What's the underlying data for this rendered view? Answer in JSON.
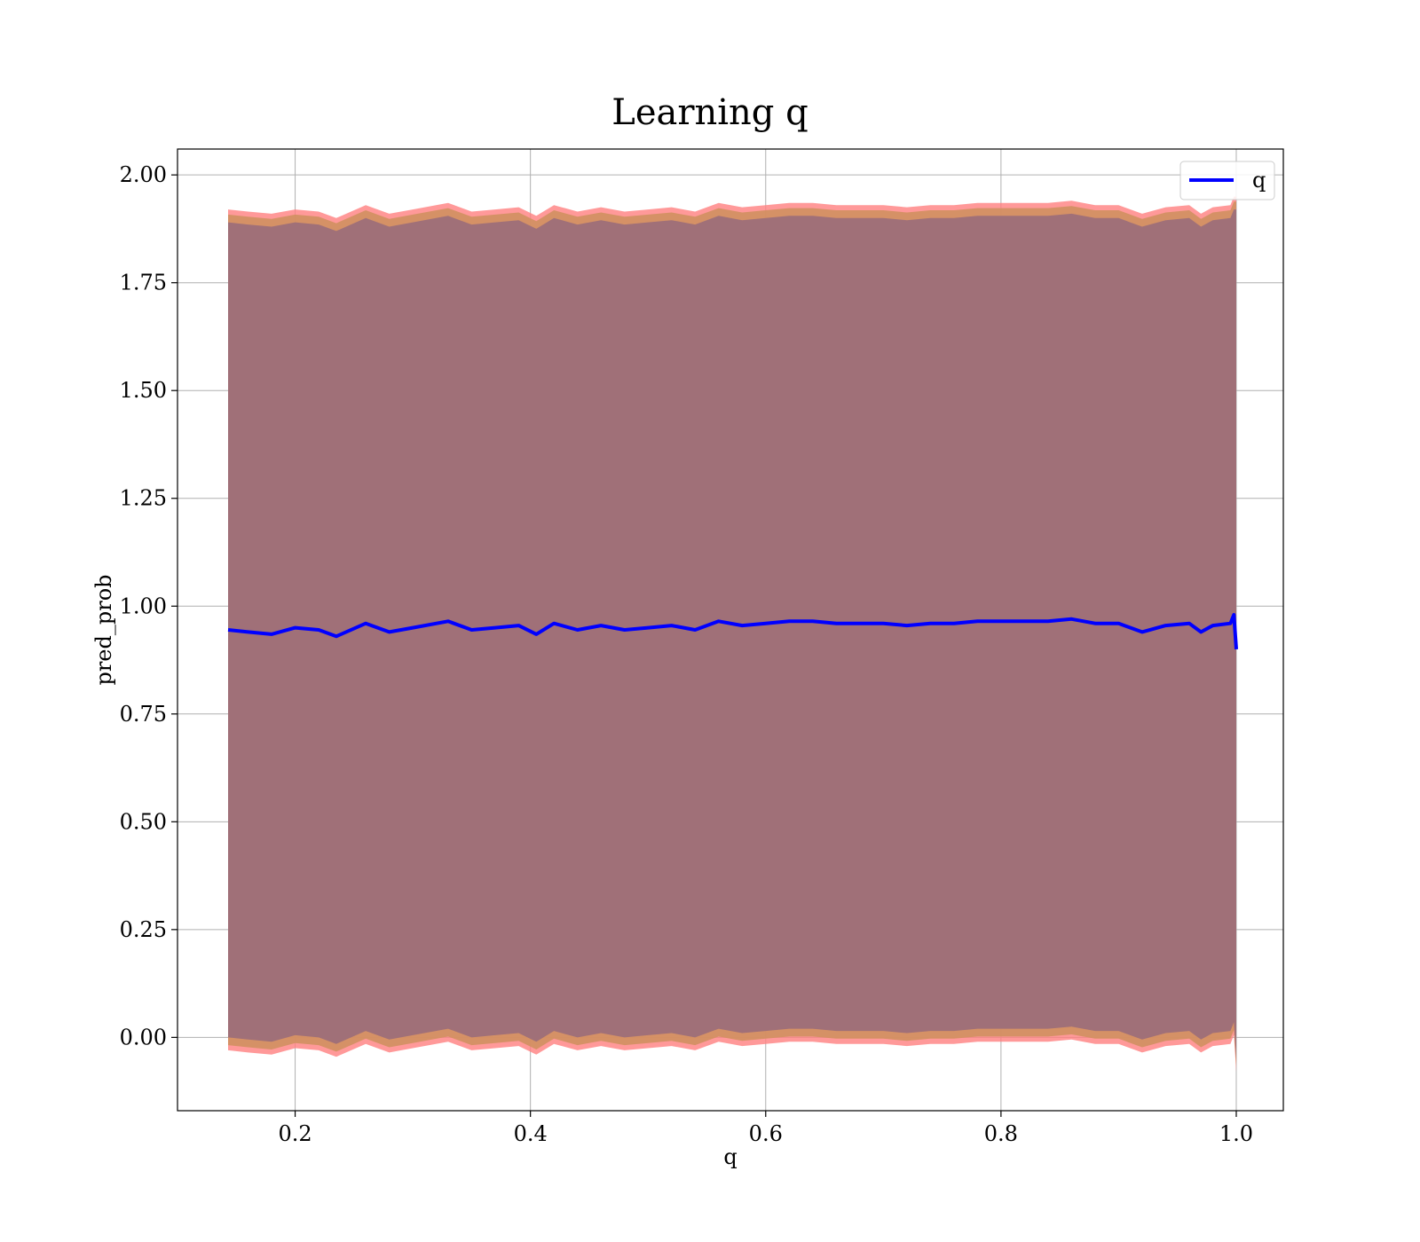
{
  "chart_data": {
    "type": "line",
    "title": "Learning q",
    "xlabel": "q",
    "ylabel": "pred_prob",
    "xlim": [
      0.1,
      1.04
    ],
    "ylim": [
      -0.17,
      2.06
    ],
    "xticks": [
      0.2,
      0.4,
      0.6,
      0.8,
      1.0
    ],
    "xtick_labels": [
      "0.2",
      "0.4",
      "0.6",
      "0.8",
      "1.0"
    ],
    "yticks": [
      0.0,
      0.25,
      0.5,
      0.75,
      1.0,
      1.25,
      1.5,
      1.75,
      2.0
    ],
    "ytick_labels": [
      "0.00",
      "0.25",
      "0.50",
      "0.75",
      "1.00",
      "1.25",
      "1.50",
      "1.75",
      "2.00"
    ],
    "grid": true,
    "legend": {
      "position": "top-right",
      "entries": [
        "q"
      ]
    },
    "colors": {
      "line": "#0000ff",
      "band_outer": "#ff7f7f",
      "band_middle": "#d09060",
      "band_inner": "#a07078",
      "grid": "#b0b0b0"
    },
    "series": [
      {
        "name": "q",
        "x": [
          0.143,
          0.16,
          0.18,
          0.2,
          0.22,
          0.235,
          0.26,
          0.28,
          0.3,
          0.33,
          0.35,
          0.37,
          0.39,
          0.405,
          0.42,
          0.44,
          0.46,
          0.48,
          0.5,
          0.52,
          0.54,
          0.56,
          0.58,
          0.6,
          0.62,
          0.64,
          0.66,
          0.68,
          0.7,
          0.72,
          0.74,
          0.76,
          0.78,
          0.8,
          0.82,
          0.84,
          0.86,
          0.88,
          0.9,
          0.92,
          0.94,
          0.96,
          0.97,
          0.98,
          0.995,
          0.998,
          1.0
        ],
        "y": [
          0.945,
          0.94,
          0.935,
          0.95,
          0.945,
          0.93,
          0.96,
          0.94,
          0.95,
          0.965,
          0.945,
          0.95,
          0.955,
          0.935,
          0.96,
          0.945,
          0.955,
          0.945,
          0.95,
          0.955,
          0.945,
          0.965,
          0.955,
          0.96,
          0.965,
          0.965,
          0.96,
          0.96,
          0.96,
          0.955,
          0.96,
          0.96,
          0.965,
          0.965,
          0.965,
          0.965,
          0.97,
          0.96,
          0.96,
          0.94,
          0.955,
          0.96,
          0.94,
          0.955,
          0.96,
          0.98,
          0.9
        ],
        "band_upper": [
          1.9,
          1.895,
          1.89,
          1.9,
          1.895,
          1.88,
          1.91,
          1.89,
          1.9,
          1.915,
          1.895,
          1.9,
          1.905,
          1.885,
          1.91,
          1.895,
          1.905,
          1.895,
          1.9,
          1.905,
          1.895,
          1.915,
          1.905,
          1.91,
          1.915,
          1.915,
          1.91,
          1.91,
          1.91,
          1.905,
          1.91,
          1.91,
          1.915,
          1.915,
          1.915,
          1.915,
          1.92,
          1.91,
          1.91,
          1.89,
          1.905,
          1.91,
          1.89,
          1.905,
          1.91,
          1.93,
          1.93
        ],
        "band_lower": [
          -0.01,
          -0.015,
          -0.02,
          -0.005,
          -0.01,
          -0.025,
          0.005,
          -0.015,
          -0.005,
          0.01,
          -0.01,
          -0.005,
          0.0,
          -0.02,
          0.005,
          -0.01,
          0.0,
          -0.01,
          -0.005,
          0.0,
          -0.01,
          0.01,
          0.0,
          0.005,
          0.01,
          0.01,
          0.005,
          0.005,
          0.005,
          0.0,
          0.005,
          0.005,
          0.01,
          0.01,
          0.01,
          0.01,
          0.015,
          0.005,
          0.005,
          -0.015,
          0.0,
          0.005,
          -0.015,
          0.0,
          0.005,
          0.025,
          -0.06
        ]
      }
    ]
  }
}
